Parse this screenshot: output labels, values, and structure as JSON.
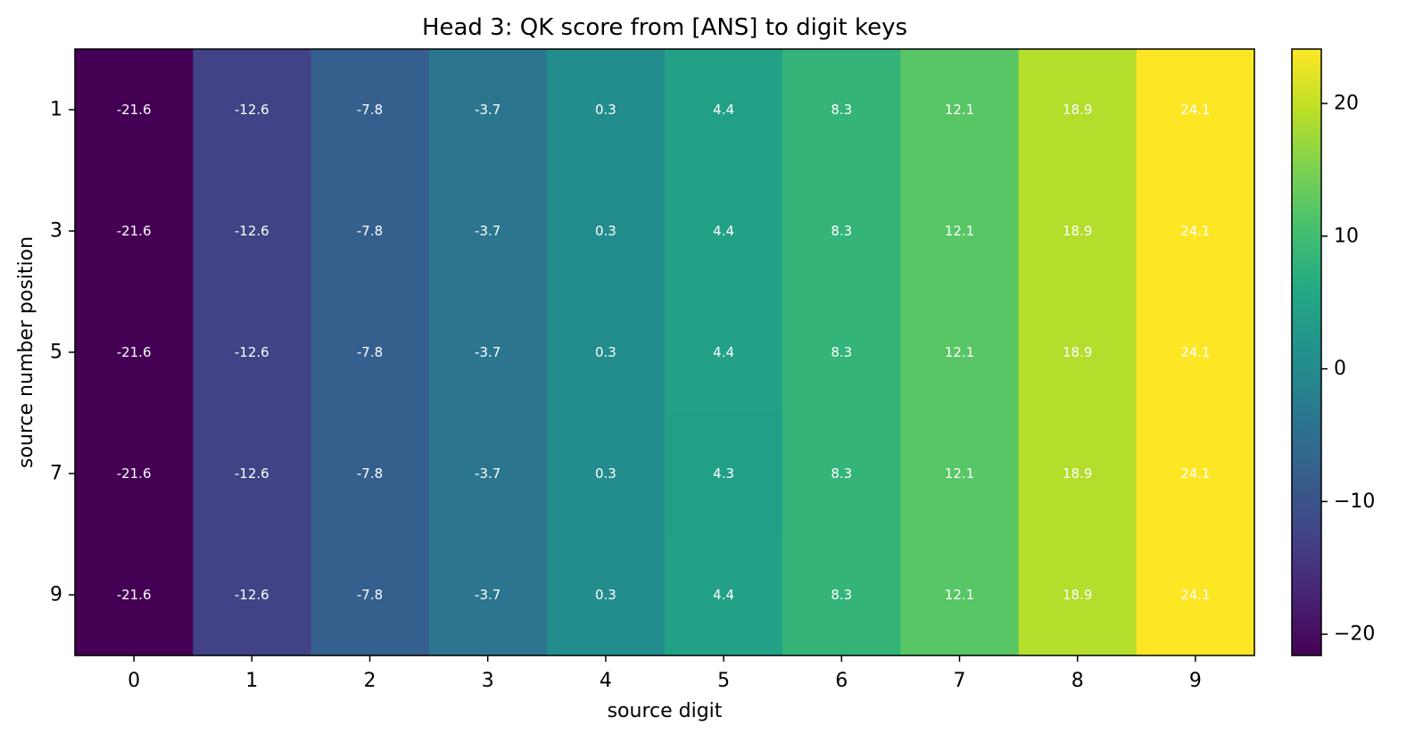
{
  "chart_data": {
    "type": "heatmap",
    "title": "Head 3: QK score from [ANS] to digit keys",
    "xlabel": "source digit",
    "ylabel": "source number position",
    "x_categories": [
      "0",
      "1",
      "2",
      "3",
      "4",
      "5",
      "6",
      "7",
      "8",
      "9"
    ],
    "y_categories": [
      "1",
      "3",
      "5",
      "7",
      "9"
    ],
    "values": [
      [
        -21.6,
        -12.6,
        -7.8,
        -3.7,
        0.3,
        4.4,
        8.3,
        12.1,
        18.9,
        24.1
      ],
      [
        -21.6,
        -12.6,
        -7.8,
        -3.7,
        0.3,
        4.4,
        8.3,
        12.1,
        18.9,
        24.1
      ],
      [
        -21.6,
        -12.6,
        -7.8,
        -3.7,
        0.3,
        4.4,
        8.3,
        12.1,
        18.9,
        24.1
      ],
      [
        -21.6,
        -12.6,
        -7.8,
        -3.7,
        0.3,
        4.3,
        8.3,
        12.1,
        18.9,
        24.1
      ],
      [
        -21.6,
        -12.6,
        -7.8,
        -3.7,
        0.3,
        4.4,
        8.3,
        12.1,
        18.9,
        24.1
      ]
    ],
    "cell_labels": [
      [
        "-21.6",
        "-12.6",
        "-7.8",
        "-3.7",
        "0.3",
        "4.4",
        "8.3",
        "12.1",
        "18.9",
        "24.1"
      ],
      [
        "-21.6",
        "-12.6",
        "-7.8",
        "-3.7",
        "0.3",
        "4.4",
        "8.3",
        "12.1",
        "18.9",
        "24.1"
      ],
      [
        "-21.6",
        "-12.6",
        "-7.8",
        "-3.7",
        "0.3",
        "4.4",
        "8.3",
        "12.1",
        "18.9",
        "24.1"
      ],
      [
        "-21.6",
        "-12.6",
        "-7.8",
        "-3.7",
        "0.3",
        "4.3",
        "8.3",
        "12.1",
        "18.9",
        "24.1"
      ],
      [
        "-21.6",
        "-12.6",
        "-7.8",
        "-3.7",
        "0.3",
        "4.4",
        "8.3",
        "12.1",
        "18.9",
        "24.1"
      ]
    ],
    "colormap": "viridis",
    "vmin": -21.6,
    "vmax": 24.1,
    "colorbar": {
      "ticks": [
        -20,
        -10,
        0,
        10,
        20
      ],
      "tick_labels": [
        "−20",
        "−10",
        "0",
        "10",
        "20"
      ]
    }
  }
}
